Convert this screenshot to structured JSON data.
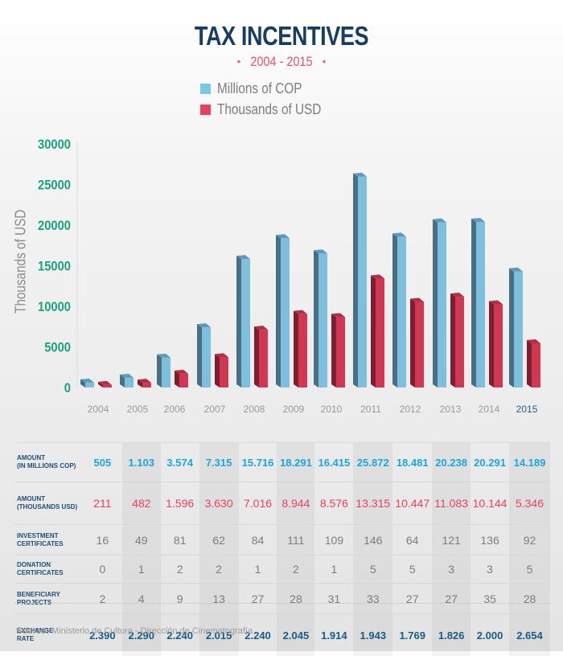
{
  "header": {
    "title": "TAX INCENTIVES",
    "subtitle": "2004 - 2015",
    "arrow_left_icon": "▸",
    "arrow_right_icon": "◂"
  },
  "colors": {
    "title": "#173d63",
    "accent_red": "#e3506b",
    "cop_blue": "#7cc6e6",
    "usd_red": "#e8405f",
    "axis_green": "#1aa17f",
    "rate_blue": "#1b5a85"
  },
  "chart_data": {
    "type": "bar",
    "title": "TAX INCENTIVES",
    "subtitle": "2004 - 2015",
    "xlabel": "",
    "ylabel": "Thousands of USD",
    "ylim": [
      0,
      30000
    ],
    "yticks": [
      0,
      5000,
      10000,
      15000,
      20000,
      25000,
      30000
    ],
    "ytick_labels": [
      "0",
      "5000",
      "10000",
      "15000",
      "20000",
      "25000",
      "30000"
    ],
    "grid": false,
    "legend_position": "top-center",
    "style": "3d-bar",
    "categories": [
      "2004",
      "2005",
      "2006",
      "2007",
      "2008",
      "2009",
      "2010",
      "2011",
      "2012",
      "2013",
      "2014",
      "2015"
    ],
    "highlight_category": "2015",
    "series": [
      {
        "name": "Millions of COP",
        "color": "#7cc6e6",
        "values": [
          505,
          1103,
          3574,
          7315,
          15716,
          18291,
          16415,
          25872,
          18481,
          20238,
          20291,
          14189
        ]
      },
      {
        "name": "Thousands of USD",
        "color": "#e8405f",
        "values": [
          211,
          482,
          1596,
          3630,
          7016,
          8944,
          8576,
          13315,
          10447,
          11083,
          10144,
          5346
        ]
      }
    ]
  },
  "table": {
    "rows": [
      {
        "label": "AMOUNT\n(IN MILLIONS COP)",
        "style": "cop",
        "values": [
          "505",
          "1.103",
          "3.574",
          "7.315",
          "15.716",
          "18.291",
          "16.415",
          "25.872",
          "18.481",
          "20.238",
          "20.291",
          "14.189"
        ]
      },
      {
        "label": "AMOUNT\n(THOUSANDS USD)",
        "style": "usd",
        "values": [
          "211",
          "482",
          "1.596",
          "3.630",
          "7.016",
          "8.944",
          "8.576",
          "13.315",
          "10.447",
          "11.083",
          "10.144",
          "5.346"
        ]
      },
      {
        "label": "INVESTMENT\nCERTIFICATES",
        "style": "gray",
        "values": [
          "16",
          "49",
          "81",
          "62",
          "84",
          "111",
          "109",
          "146",
          "64",
          "121",
          "136",
          "92"
        ]
      },
      {
        "label": "DONATION\nCERTIFICATES",
        "style": "gray",
        "values": [
          "0",
          "1",
          "2",
          "2",
          "1",
          "2",
          "1",
          "5",
          "5",
          "3",
          "3",
          "5"
        ]
      },
      {
        "label": "BENEFICIARY\nPROJECTS",
        "style": "gray",
        "values": [
          "2",
          "4",
          "9",
          "13",
          "27",
          "28",
          "31",
          "33",
          "27",
          "27",
          "35",
          "28"
        ]
      },
      {
        "label": "EXCHANGE\nRATE",
        "style": "rate",
        "values": [
          "2.390",
          "2.290",
          "2.240",
          "2.015",
          "2.240",
          "2.045",
          "1.914",
          "1.943",
          "1.769",
          "1.826",
          "2.000",
          "2.654"
        ]
      }
    ]
  },
  "footer": {
    "source_label": "Source:",
    "source_text": " Ministerio de Cultura - Dirección de Cinematografía"
  }
}
